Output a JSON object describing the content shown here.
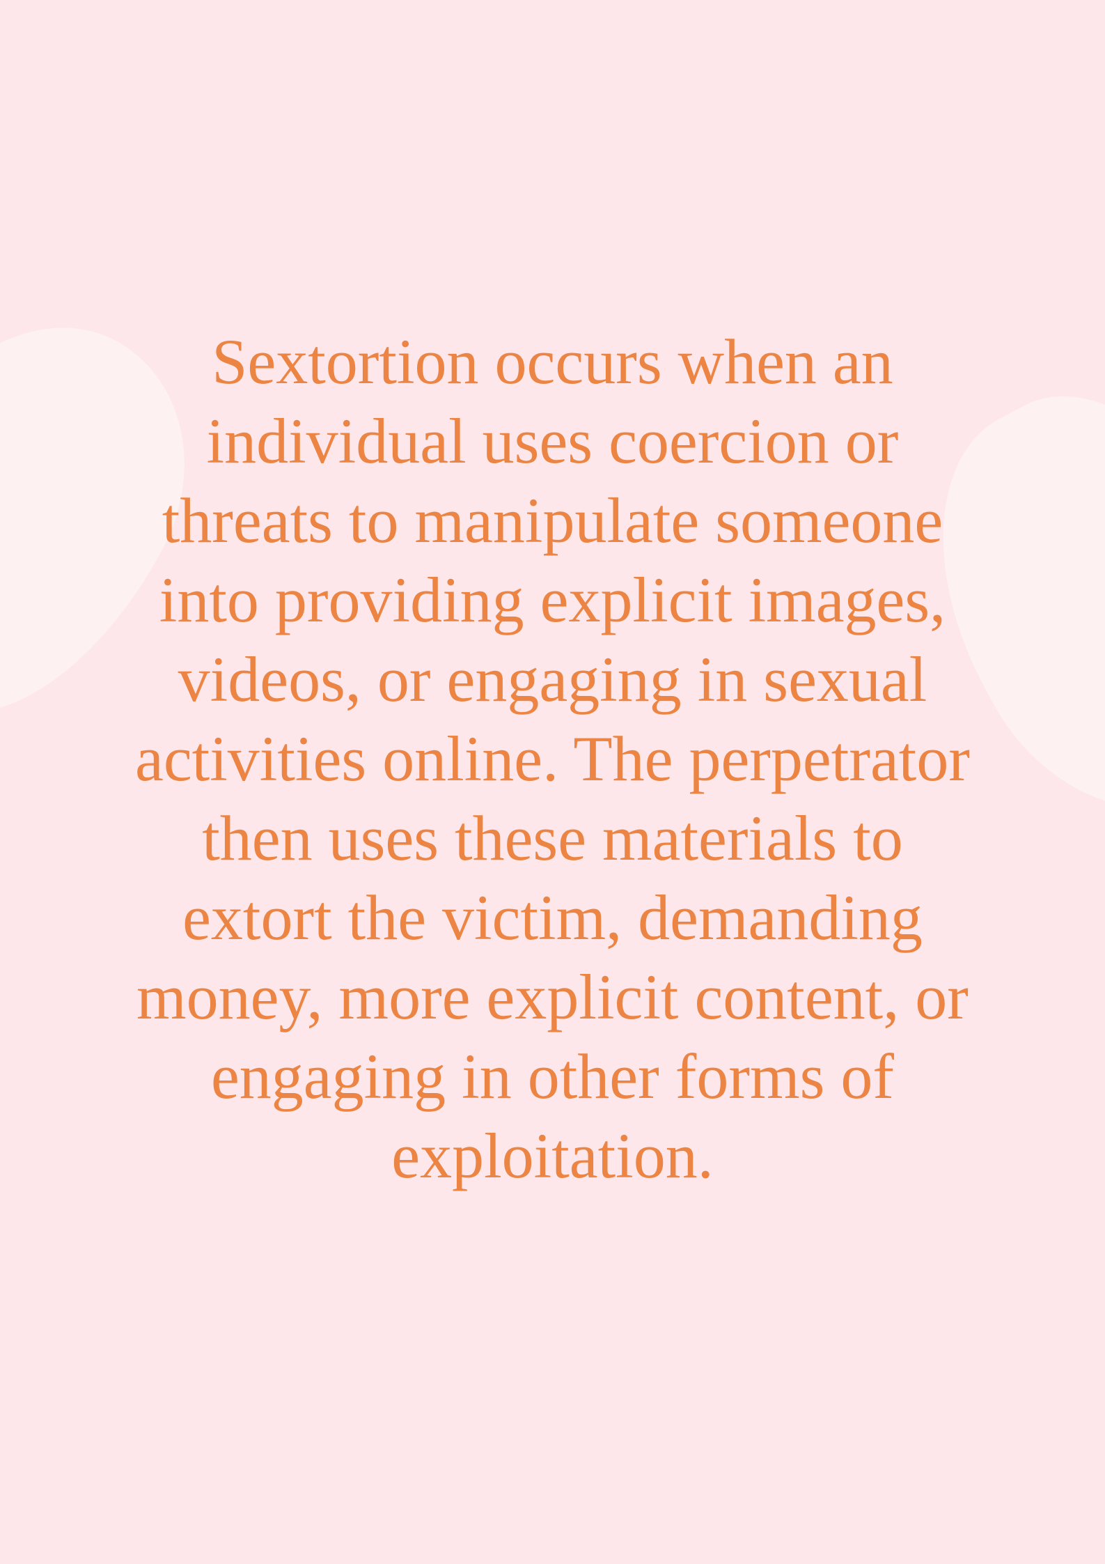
{
  "document": {
    "body_text": "Sextortion occurs when an\nindividual uses coercion or\nthreats to manipulate someone\ninto providing explicit images,\nvideos, or engaging in sexual\nactivities online. The perpetrator\nthen uses these materials to\nextort the victim, demanding\nmoney, more explicit content, or\nengaging in other forms of\nexploitation."
  },
  "colors": {
    "background": "#fde7ea",
    "decor_shape": "#fdf1f2",
    "text": "#ec8444"
  }
}
